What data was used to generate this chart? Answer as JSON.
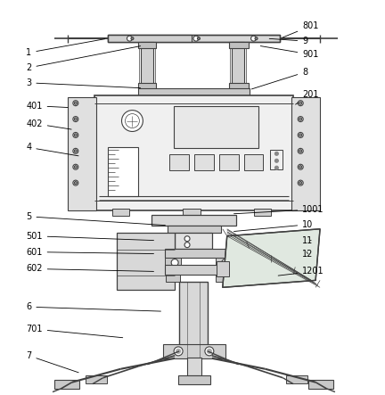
{
  "bg_color": "#ffffff",
  "line_color": "#404040",
  "label_color": "#000000",
  "fig_w": 4.32,
  "fig_h": 4.43,
  "dpi": 100
}
